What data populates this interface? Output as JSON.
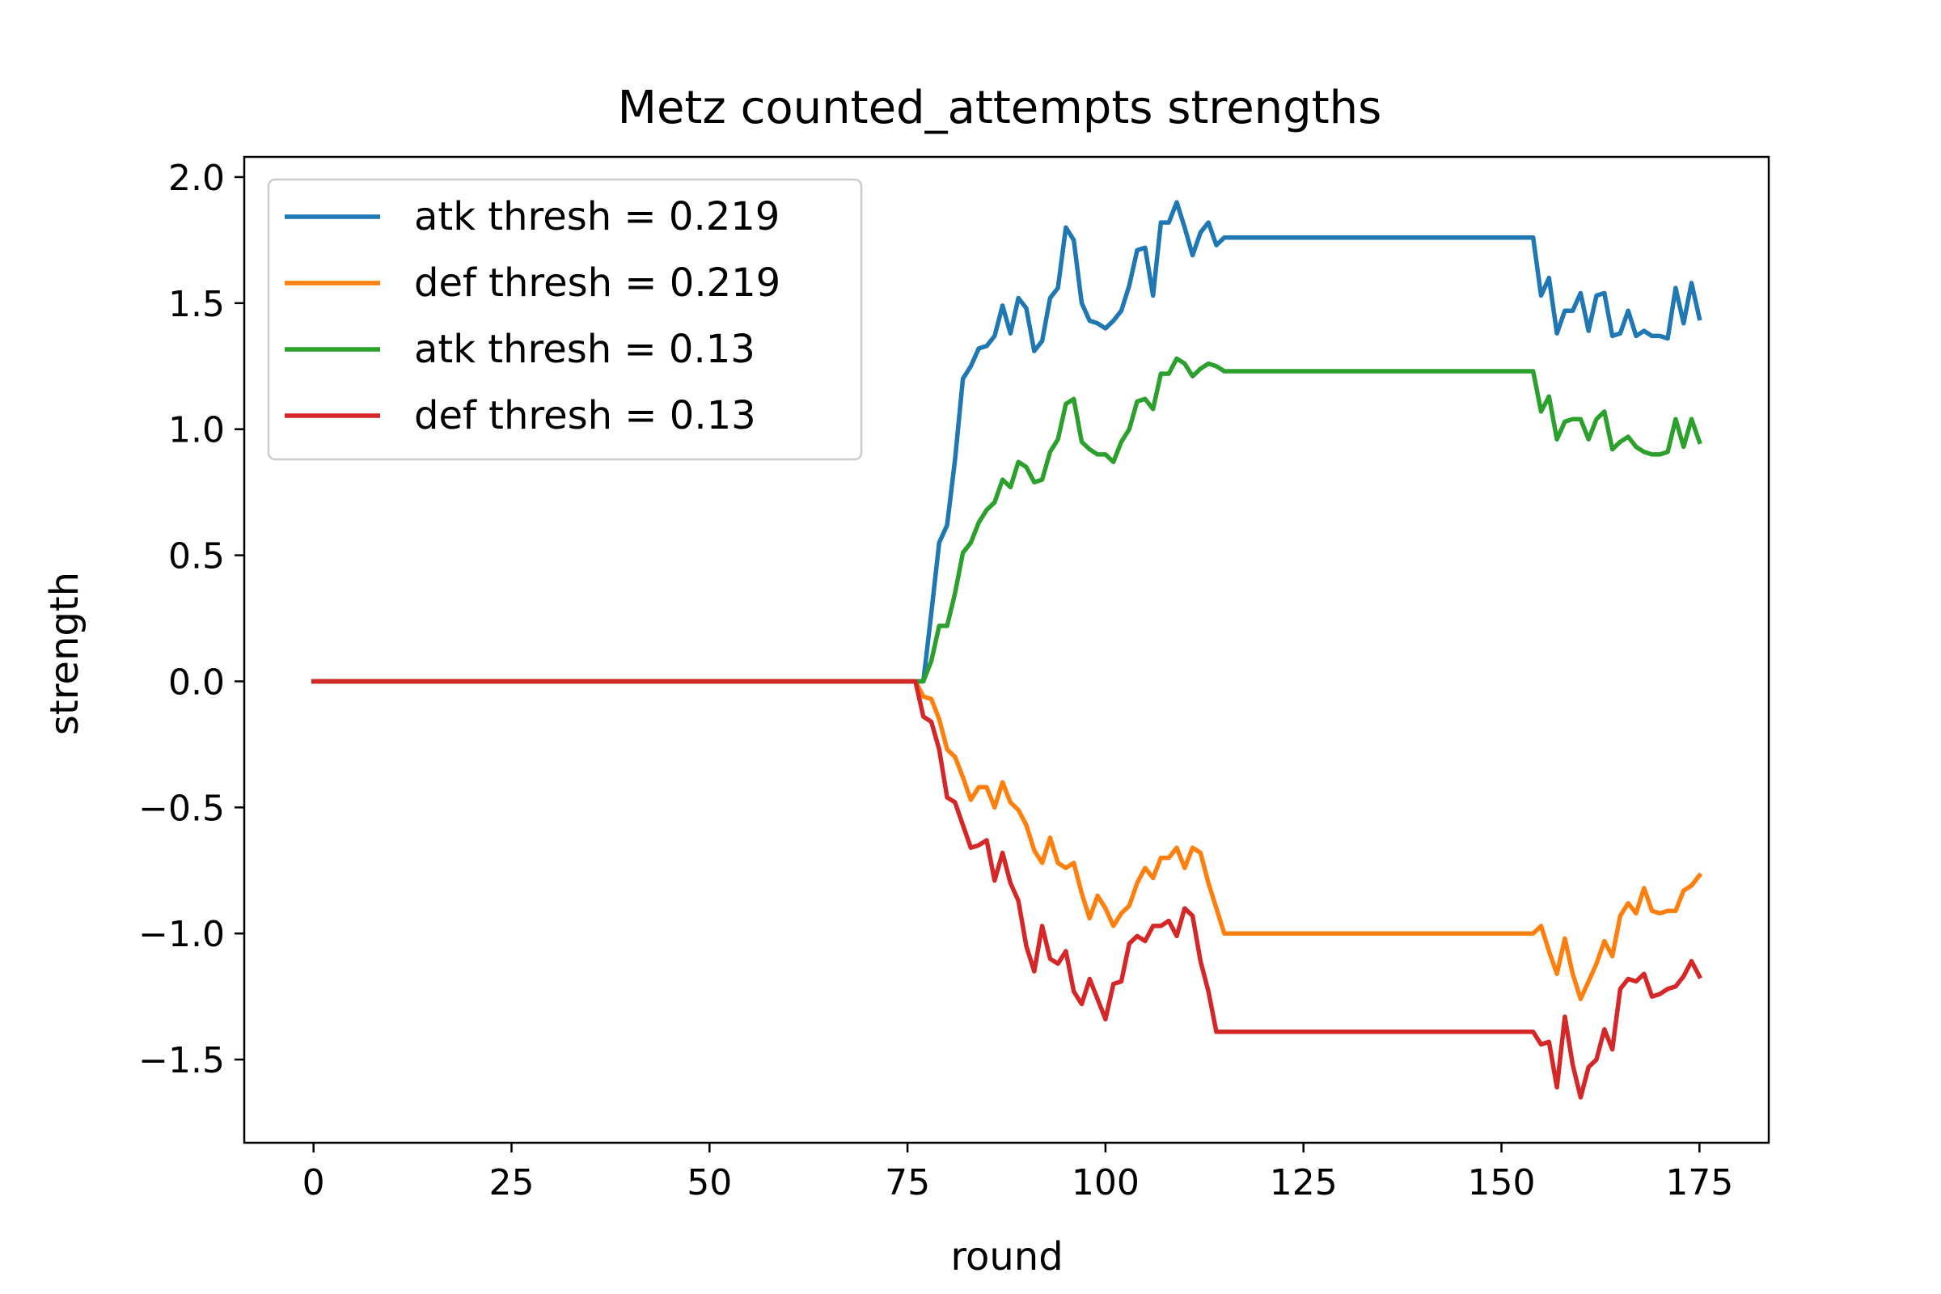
{
  "chart_data": {
    "type": "line",
    "title": "Metz counted_attempts strengths",
    "xlabel": "round",
    "ylabel": "strength",
    "xlim": [
      -8.75,
      183.75
    ],
    "ylim": [
      -1.83,
      2.08
    ],
    "xticks": [
      0,
      25,
      50,
      75,
      100,
      125,
      150,
      175
    ],
    "yticks": [
      -1.5,
      -1.0,
      -0.5,
      0.0,
      0.5,
      1.0,
      1.5,
      2.0
    ],
    "xtick_labels": [
      "0",
      "25",
      "50",
      "75",
      "100",
      "125",
      "150",
      "175"
    ],
    "ytick_labels": [
      "−1.5",
      "−1.0",
      "−0.5",
      "0.0",
      "0.5",
      "1.0",
      "1.5",
      "2.0"
    ],
    "grid": false,
    "legend_position": "top-left",
    "series": [
      {
        "name": "atk thresh = 0.219",
        "color": "#1f77b4",
        "points": [
          [
            0,
            0
          ],
          [
            76,
            0
          ],
          [
            77,
            0
          ],
          [
            78,
            0.27
          ],
          [
            79,
            0.55
          ],
          [
            80,
            0.62
          ],
          [
            81,
            0.88
          ],
          [
            82,
            1.2
          ],
          [
            83,
            1.25
          ],
          [
            84,
            1.32
          ],
          [
            85,
            1.33
          ],
          [
            86,
            1.37
          ],
          [
            87,
            1.49
          ],
          [
            88,
            1.38
          ],
          [
            89,
            1.52
          ],
          [
            90,
            1.48
          ],
          [
            91,
            1.31
          ],
          [
            92,
            1.35
          ],
          [
            93,
            1.52
          ],
          [
            94,
            1.56
          ],
          [
            95,
            1.8
          ],
          [
            96,
            1.75
          ],
          [
            97,
            1.5
          ],
          [
            98,
            1.43
          ],
          [
            99,
            1.42
          ],
          [
            100,
            1.4
          ],
          [
            101,
            1.43
          ],
          [
            102,
            1.47
          ],
          [
            103,
            1.57
          ],
          [
            104,
            1.71
          ],
          [
            105,
            1.72
          ],
          [
            106,
            1.53
          ],
          [
            107,
            1.82
          ],
          [
            108,
            1.82
          ],
          [
            109,
            1.9
          ],
          [
            110,
            1.8
          ],
          [
            111,
            1.69
          ],
          [
            112,
            1.78
          ],
          [
            113,
            1.82
          ],
          [
            114,
            1.73
          ],
          [
            115,
            1.76
          ],
          [
            154,
            1.76
          ],
          [
            155,
            1.53
          ],
          [
            156,
            1.6
          ],
          [
            157,
            1.38
          ],
          [
            158,
            1.47
          ],
          [
            159,
            1.47
          ],
          [
            160,
            1.54
          ],
          [
            161,
            1.39
          ],
          [
            162,
            1.53
          ],
          [
            163,
            1.54
          ],
          [
            164,
            1.37
          ],
          [
            165,
            1.38
          ],
          [
            166,
            1.47
          ],
          [
            167,
            1.37
          ],
          [
            168,
            1.39
          ],
          [
            169,
            1.37
          ],
          [
            170,
            1.37
          ],
          [
            171,
            1.36
          ],
          [
            172,
            1.56
          ],
          [
            173,
            1.42
          ],
          [
            174,
            1.58
          ],
          [
            175,
            1.44
          ]
        ]
      },
      {
        "name": "def thresh = 0.219",
        "color": "#ff7f0e",
        "points": [
          [
            0,
            0
          ],
          [
            76,
            0
          ],
          [
            77,
            -0.06
          ],
          [
            78,
            -0.07
          ],
          [
            79,
            -0.15
          ],
          [
            80,
            -0.27
          ],
          [
            81,
            -0.3
          ],
          [
            82,
            -0.38
          ],
          [
            83,
            -0.47
          ],
          [
            84,
            -0.42
          ],
          [
            85,
            -0.42
          ],
          [
            86,
            -0.5
          ],
          [
            87,
            -0.4
          ],
          [
            88,
            -0.48
          ],
          [
            89,
            -0.51
          ],
          [
            90,
            -0.57
          ],
          [
            91,
            -0.67
          ],
          [
            92,
            -0.72
          ],
          [
            93,
            -0.62
          ],
          [
            94,
            -0.72
          ],
          [
            95,
            -0.74
          ],
          [
            96,
            -0.72
          ],
          [
            97,
            -0.84
          ],
          [
            98,
            -0.94
          ],
          [
            99,
            -0.85
          ],
          [
            100,
            -0.9
          ],
          [
            101,
            -0.97
          ],
          [
            102,
            -0.92
          ],
          [
            103,
            -0.89
          ],
          [
            104,
            -0.8
          ],
          [
            105,
            -0.74
          ],
          [
            106,
            -0.78
          ],
          [
            107,
            -0.7
          ],
          [
            108,
            -0.7
          ],
          [
            109,
            -0.66
          ],
          [
            110,
            -0.74
          ],
          [
            111,
            -0.66
          ],
          [
            112,
            -0.68
          ],
          [
            113,
            -0.8
          ],
          [
            114,
            -0.9
          ],
          [
            115,
            -1.0
          ],
          [
            154,
            -1.0
          ],
          [
            155,
            -0.97
          ],
          [
            156,
            -1.07
          ],
          [
            157,
            -1.16
          ],
          [
            158,
            -1.02
          ],
          [
            159,
            -1.16
          ],
          [
            160,
            -1.26
          ],
          [
            161,
            -1.19
          ],
          [
            162,
            -1.12
          ],
          [
            163,
            -1.03
          ],
          [
            164,
            -1.09
          ],
          [
            165,
            -0.93
          ],
          [
            166,
            -0.88
          ],
          [
            167,
            -0.92
          ],
          [
            168,
            -0.82
          ],
          [
            169,
            -0.91
          ],
          [
            170,
            -0.92
          ],
          [
            171,
            -0.91
          ],
          [
            172,
            -0.91
          ],
          [
            173,
            -0.83
          ],
          [
            174,
            -0.81
          ],
          [
            175,
            -0.77
          ]
        ]
      },
      {
        "name": "atk thresh = 0.13",
        "color": "#2ca02c",
        "points": [
          [
            0,
            0
          ],
          [
            76,
            0
          ],
          [
            77,
            0
          ],
          [
            78,
            0.08
          ],
          [
            79,
            0.22
          ],
          [
            80,
            0.22
          ],
          [
            81,
            0.35
          ],
          [
            82,
            0.51
          ],
          [
            83,
            0.55
          ],
          [
            84,
            0.63
          ],
          [
            85,
            0.68
          ],
          [
            86,
            0.71
          ],
          [
            87,
            0.8
          ],
          [
            88,
            0.77
          ],
          [
            89,
            0.87
          ],
          [
            90,
            0.85
          ],
          [
            91,
            0.79
          ],
          [
            92,
            0.8
          ],
          [
            93,
            0.91
          ],
          [
            94,
            0.96
          ],
          [
            95,
            1.1
          ],
          [
            96,
            1.12
          ],
          [
            97,
            0.95
          ],
          [
            98,
            0.92
          ],
          [
            99,
            0.9
          ],
          [
            100,
            0.9
          ],
          [
            101,
            0.87
          ],
          [
            102,
            0.95
          ],
          [
            103,
            1.0
          ],
          [
            104,
            1.11
          ],
          [
            105,
            1.12
          ],
          [
            106,
            1.08
          ],
          [
            107,
            1.22
          ],
          [
            108,
            1.22
          ],
          [
            109,
            1.28
          ],
          [
            110,
            1.26
          ],
          [
            111,
            1.21
          ],
          [
            112,
            1.24
          ],
          [
            113,
            1.26
          ],
          [
            114,
            1.25
          ],
          [
            115,
            1.23
          ],
          [
            154,
            1.23
          ],
          [
            155,
            1.07
          ],
          [
            156,
            1.13
          ],
          [
            157,
            0.96
          ],
          [
            158,
            1.03
          ],
          [
            159,
            1.04
          ],
          [
            160,
            1.04
          ],
          [
            161,
            0.96
          ],
          [
            162,
            1.04
          ],
          [
            163,
            1.07
          ],
          [
            164,
            0.92
          ],
          [
            165,
            0.95
          ],
          [
            166,
            0.97
          ],
          [
            167,
            0.93
          ],
          [
            168,
            0.91
          ],
          [
            169,
            0.9
          ],
          [
            170,
            0.9
          ],
          [
            171,
            0.91
          ],
          [
            172,
            1.04
          ],
          [
            173,
            0.93
          ],
          [
            174,
            1.04
          ],
          [
            175,
            0.95
          ]
        ]
      },
      {
        "name": "def thresh = 0.13",
        "color": "#d62728",
        "points": [
          [
            0,
            0
          ],
          [
            76,
            0
          ],
          [
            77,
            -0.14
          ],
          [
            78,
            -0.16
          ],
          [
            79,
            -0.27
          ],
          [
            80,
            -0.46
          ],
          [
            81,
            -0.48
          ],
          [
            82,
            -0.57
          ],
          [
            83,
            -0.66
          ],
          [
            84,
            -0.65
          ],
          [
            85,
            -0.63
          ],
          [
            86,
            -0.79
          ],
          [
            87,
            -0.68
          ],
          [
            88,
            -0.8
          ],
          [
            89,
            -0.87
          ],
          [
            90,
            -1.05
          ],
          [
            91,
            -1.15
          ],
          [
            92,
            -0.97
          ],
          [
            93,
            -1.1
          ],
          [
            94,
            -1.12
          ],
          [
            95,
            -1.07
          ],
          [
            96,
            -1.23
          ],
          [
            97,
            -1.28
          ],
          [
            98,
            -1.18
          ],
          [
            99,
            -1.26
          ],
          [
            100,
            -1.34
          ],
          [
            101,
            -1.2
          ],
          [
            102,
            -1.19
          ],
          [
            103,
            -1.04
          ],
          [
            104,
            -1.01
          ],
          [
            105,
            -1.03
          ],
          [
            106,
            -0.97
          ],
          [
            107,
            -0.97
          ],
          [
            108,
            -0.95
          ],
          [
            109,
            -1.01
          ],
          [
            110,
            -0.9
          ],
          [
            111,
            -0.93
          ],
          [
            112,
            -1.11
          ],
          [
            113,
            -1.23
          ],
          [
            114,
            -1.39
          ],
          [
            115,
            -1.39
          ],
          [
            154,
            -1.39
          ],
          [
            155,
            -1.44
          ],
          [
            156,
            -1.43
          ],
          [
            157,
            -1.61
          ],
          [
            158,
            -1.33
          ],
          [
            159,
            -1.52
          ],
          [
            160,
            -1.65
          ],
          [
            161,
            -1.53
          ],
          [
            162,
            -1.5
          ],
          [
            163,
            -1.38
          ],
          [
            164,
            -1.46
          ],
          [
            165,
            -1.22
          ],
          [
            166,
            -1.18
          ],
          [
            167,
            -1.19
          ],
          [
            168,
            -1.16
          ],
          [
            169,
            -1.25
          ],
          [
            170,
            -1.24
          ],
          [
            171,
            -1.22
          ],
          [
            172,
            -1.21
          ],
          [
            173,
            -1.17
          ],
          [
            174,
            -1.11
          ],
          [
            175,
            -1.17
          ]
        ]
      }
    ]
  }
}
